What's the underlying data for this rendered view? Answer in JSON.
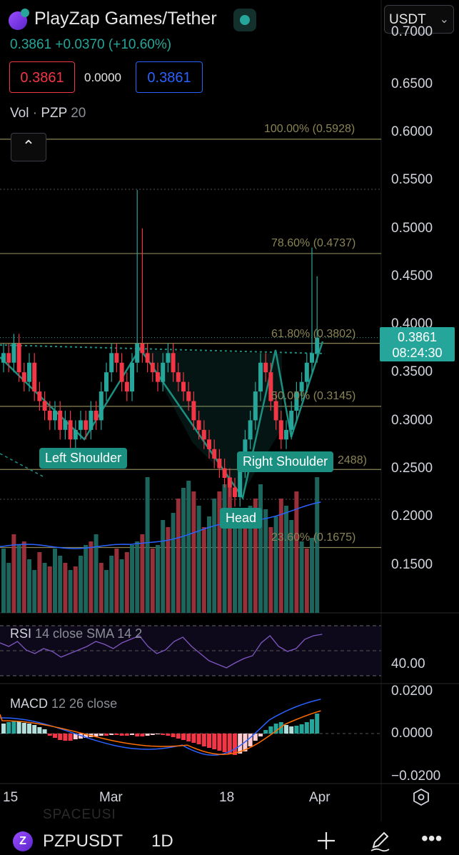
{
  "header": {
    "pair_title": "PlayZap Games/Tether",
    "quote_currency": "USDT",
    "last_price": "0.3861",
    "change": "+0.0370",
    "change_pct": "(+10.60%)",
    "bid": "0.3861",
    "spread": "0.0000",
    "ask": "0.3861"
  },
  "volume_indicator": {
    "name": "Vol",
    "symbol": "PZP",
    "length": "20"
  },
  "price_axis": {
    "ticks": [
      "0.6500",
      "0.6000",
      "0.5500",
      "0.5000",
      "0.4500",
      "0.4000",
      "0.3500",
      "0.3000",
      "0.2500",
      "0.2000",
      "0.1500"
    ],
    "top_partial": "0.7000"
  },
  "current_price_tag": {
    "price": "0.3861",
    "countdown": "08:24:30"
  },
  "fib_levels": [
    {
      "label": "100.00% (0.5928)",
      "price": 0.5928
    },
    {
      "label": "78.60% (0.4737)",
      "price": 0.4737
    },
    {
      "label": "61.80% (0.3802)",
      "price": 0.3802
    },
    {
      "label": "50.00% (0.3145)",
      "price": 0.3145
    },
    {
      "label": "2488)",
      "price": 0.2488
    },
    {
      "label": "23.60% (0.1675)",
      "price": 0.1675
    }
  ],
  "pattern_labels": {
    "left": "Left Shoulder",
    "head": "Head",
    "right": "Right Shoulder"
  },
  "rsi": {
    "name": "RSI",
    "params": "14 close SMA 14 2",
    "axis_tick": "40.00"
  },
  "macd": {
    "name": "MACD",
    "params": "12 26 close",
    "ticks": [
      "0.0200",
      "0.0000",
      "−0.0200"
    ]
  },
  "x_axis": {
    "labels": [
      "15",
      "Mar",
      "18",
      "Apr"
    ]
  },
  "watermark": "SPACEUSI",
  "bottom_bar": {
    "coin_letter": "Z",
    "symbol": "PZPUSDT",
    "interval": "1D"
  },
  "colors": {
    "up": "#26a69a",
    "down": "#f23645",
    "fib": "#8a8455",
    "pattern": "#1b8f80",
    "ma": "#2962ff",
    "signal": "#ff6d00"
  },
  "icons": [
    "coin-icon",
    "status-dot-icon",
    "chevron-down-icon",
    "chevron-up-icon",
    "settings-hex-icon",
    "plus-icon",
    "pen-icon",
    "more-icon"
  ]
}
